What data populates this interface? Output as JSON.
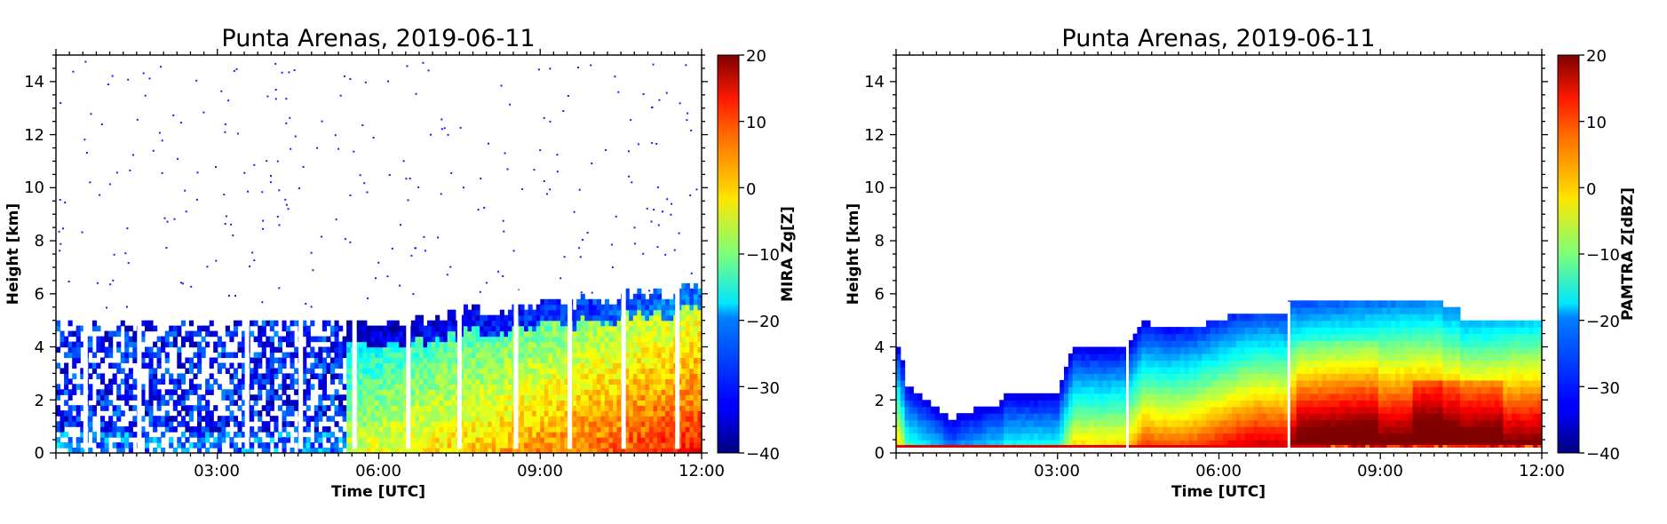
{
  "chart_data": [
    {
      "type": "heatmap",
      "title": "Punta Arenas, 2019-06-11",
      "xlabel": "Time [UTC]",
      "ylabel": "Height [km]",
      "xlim": [
        "00:00",
        "12:00"
      ],
      "ylim": [
        0,
        15
      ],
      "x_ticks": [
        "03:00",
        "06:00",
        "09:00",
        "12:00"
      ],
      "y_ticks": [
        "0",
        "2",
        "4",
        "6",
        "8",
        "10",
        "12",
        "14"
      ],
      "colorbar": {
        "label": "MIRA Zg[Z]",
        "range": [
          -40,
          20
        ],
        "ticks": [
          "20",
          "10",
          "0",
          "−10",
          "−20",
          "−30",
          "−40"
        ],
        "colormap": "jet"
      },
      "scan_gaps_hours": [
        0.55,
        1.55,
        3.55,
        4.55,
        5.55,
        6.55,
        7.5,
        8.55,
        9.55,
        10.55,
        11.55
      ]
    },
    {
      "type": "heatmap",
      "title": "Punta Arenas, 2019-06-11",
      "xlabel": "Time [UTC]",
      "ylabel": "Height [km]",
      "xlim": [
        "00:00",
        "12:00"
      ],
      "ylim": [
        0,
        15
      ],
      "x_ticks": [
        "03:00",
        "06:00",
        "09:00",
        "12:00"
      ],
      "y_ticks": [
        "0",
        "2",
        "4",
        "6",
        "8",
        "10",
        "12",
        "14"
      ],
      "colorbar": {
        "label": "PAMTRA Z[dBZ]",
        "range": [
          -40,
          20
        ],
        "ticks": [
          "20",
          "10",
          "0",
          "−10",
          "−20",
          "−30",
          "−40"
        ],
        "colormap": "jet"
      },
      "scan_gaps_hours": [
        4.3,
        7.3
      ]
    }
  ]
}
